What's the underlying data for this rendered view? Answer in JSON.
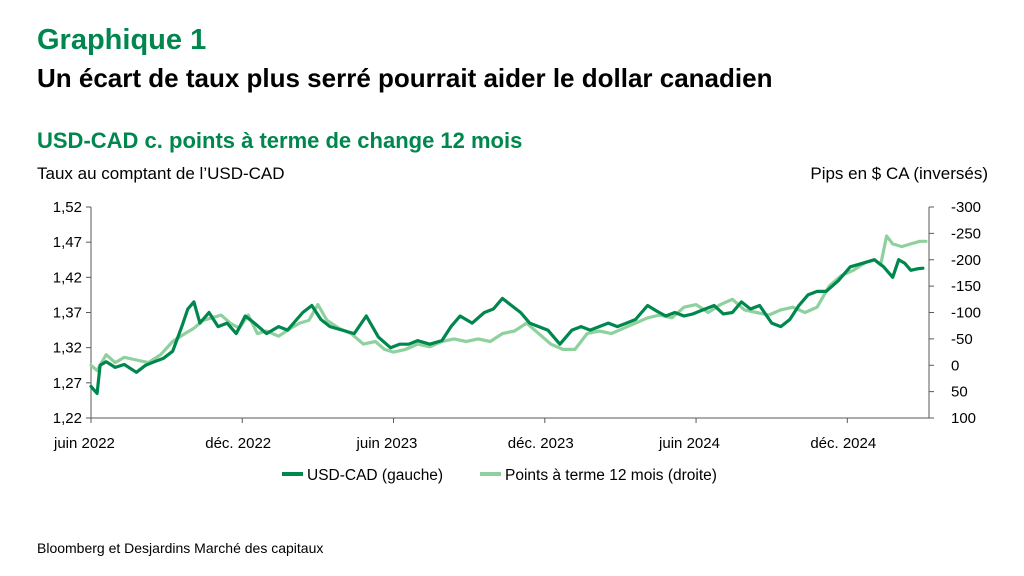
{
  "header": {
    "kicker": "Graphique 1",
    "title": "Un écart de taux plus serré pourrait aider le dollar canadien"
  },
  "source": "Bloomberg et Desjardins Marché des capitaux",
  "colors": {
    "brand": "#00874E",
    "series_dark": "#00874E",
    "series_light": "#8FD19E",
    "axis": "#595959"
  },
  "chart_data": {
    "type": "line",
    "title": "USD-CAD c. points à terme de change 12 mois",
    "ylabel": "Taux au comptant de l’USD-CAD",
    "y2label": "Pips en $ CA (inversés)",
    "x_range": [
      2022.45,
      2025.22
    ],
    "x_ticks": [
      {
        "label": "juin 2022",
        "value": 2022.45
      },
      {
        "label": "déc. 2022",
        "value": 2022.95
      },
      {
        "label": "juin 2023",
        "value": 2023.45
      },
      {
        "label": "déc. 2023",
        "value": 2023.95
      },
      {
        "label": "juin 2024",
        "value": 2024.45
      },
      {
        "label": "déc. 2024",
        "value": 2024.95
      }
    ],
    "ylim": [
      1.22,
      1.52
    ],
    "y_ticks": [
      "1,52",
      "1,47",
      "1,42",
      "1,37",
      "1,32",
      "1,27",
      "1,22"
    ],
    "y_tick_values": [
      1.52,
      1.47,
      1.42,
      1.37,
      1.32,
      1.27,
      1.22
    ],
    "y2lim_inverted": [
      100,
      -300
    ],
    "y2_ticks": [
      "-300",
      "-250",
      "-200",
      "-150",
      "-100",
      "-50",
      "0",
      "50",
      "100"
    ],
    "y2_tick_values": [
      -300,
      -250,
      -200,
      -150,
      -100,
      -50,
      0,
      50,
      100
    ],
    "legend": [
      {
        "label": "USD-CAD (gauche)",
        "series": "usdcad"
      },
      {
        "label": "Points à terme 12 mois (droite)",
        "series": "fwd"
      }
    ],
    "series": [
      {
        "name": "USD-CAD (gauche)",
        "axis": "left",
        "x": [
          2022.45,
          2022.47,
          2022.48,
          2022.5,
          2022.53,
          2022.56,
          2022.6,
          2022.63,
          2022.66,
          2022.69,
          2022.72,
          2022.75,
          2022.77,
          2022.79,
          2022.81,
          2022.84,
          2022.87,
          2022.9,
          2022.93,
          2022.96,
          2022.99,
          2023.03,
          2023.07,
          2023.1,
          2023.13,
          2023.15,
          2023.18,
          2023.21,
          2023.24,
          2023.28,
          2023.32,
          2023.36,
          2023.4,
          2023.44,
          2023.47,
          2023.5,
          2023.53,
          2023.57,
          2023.61,
          2023.64,
          2023.67,
          2023.71,
          2023.75,
          2023.78,
          2023.81,
          2023.84,
          2023.87,
          2023.9,
          2023.93,
          2023.96,
          2024.0,
          2024.04,
          2024.07,
          2024.1,
          2024.13,
          2024.16,
          2024.19,
          2024.22,
          2024.25,
          2024.29,
          2024.32,
          2024.35,
          2024.38,
          2024.41,
          2024.44,
          2024.48,
          2024.51,
          2024.54,
          2024.57,
          2024.6,
          2024.63,
          2024.66,
          2024.7,
          2024.73,
          2024.76,
          2024.79,
          2024.82,
          2024.85,
          2024.88,
          2024.92,
          2024.96,
          2025.0,
          2025.04,
          2025.07,
          2025.1,
          2025.12,
          2025.14,
          2025.16,
          2025.18,
          2025.2
        ],
        "values": [
          1.265,
          1.255,
          1.295,
          1.3,
          1.292,
          1.296,
          1.285,
          1.295,
          1.3,
          1.305,
          1.315,
          1.35,
          1.375,
          1.385,
          1.355,
          1.37,
          1.35,
          1.355,
          1.34,
          1.365,
          1.355,
          1.34,
          1.35,
          1.345,
          1.36,
          1.37,
          1.38,
          1.36,
          1.35,
          1.345,
          1.34,
          1.365,
          1.335,
          1.32,
          1.325,
          1.325,
          1.33,
          1.325,
          1.33,
          1.35,
          1.365,
          1.355,
          1.37,
          1.375,
          1.39,
          1.38,
          1.37,
          1.355,
          1.35,
          1.345,
          1.325,
          1.345,
          1.35,
          1.345,
          1.35,
          1.355,
          1.35,
          1.355,
          1.36,
          1.38,
          1.372,
          1.365,
          1.37,
          1.365,
          1.368,
          1.375,
          1.38,
          1.368,
          1.37,
          1.385,
          1.375,
          1.38,
          1.355,
          1.35,
          1.36,
          1.38,
          1.395,
          1.4,
          1.4,
          1.415,
          1.435,
          1.44,
          1.445,
          1.435,
          1.42,
          1.445,
          1.44,
          1.43,
          1.432,
          1.433
        ]
      },
      {
        "name": "Points à terme 12 mois (droite)",
        "axis": "right",
        "x": [
          2022.45,
          2022.47,
          2022.5,
          2022.53,
          2022.56,
          2022.6,
          2022.64,
          2022.68,
          2022.72,
          2022.76,
          2022.79,
          2022.82,
          2022.85,
          2022.88,
          2022.91,
          2022.94,
          2022.97,
          2023.0,
          2023.03,
          2023.07,
          2023.11,
          2023.14,
          2023.17,
          2023.2,
          2023.23,
          2023.27,
          2023.31,
          2023.35,
          2023.39,
          2023.42,
          2023.45,
          2023.49,
          2023.53,
          2023.57,
          2023.61,
          2023.65,
          2023.69,
          2023.73,
          2023.77,
          2023.81,
          2023.85,
          2023.89,
          2023.93,
          2023.97,
          2024.01,
          2024.05,
          2024.09,
          2024.13,
          2024.17,
          2024.21,
          2024.25,
          2024.29,
          2024.33,
          2024.37,
          2024.41,
          2024.45,
          2024.49,
          2024.53,
          2024.57,
          2024.61,
          2024.65,
          2024.69,
          2024.73,
          2024.77,
          2024.81,
          2024.85,
          2024.89,
          2024.93,
          2024.97,
          2025.01,
          2025.04,
          2025.06,
          2025.08,
          2025.1,
          2025.13,
          2025.16,
          2025.19,
          2025.21
        ],
        "values": [
          0,
          10,
          -20,
          -5,
          -15,
          -10,
          -5,
          -20,
          -45,
          -60,
          -70,
          -85,
          -90,
          -95,
          -80,
          -70,
          -95,
          -60,
          -65,
          -55,
          -70,
          -80,
          -85,
          -115,
          -85,
          -70,
          -60,
          -40,
          -45,
          -30,
          -25,
          -30,
          -40,
          -35,
          -45,
          -50,
          -45,
          -50,
          -45,
          -60,
          -65,
          -80,
          -60,
          -40,
          -30,
          -30,
          -60,
          -65,
          -60,
          -70,
          -80,
          -90,
          -95,
          -90,
          -110,
          -115,
          -100,
          -115,
          -125,
          -105,
          -100,
          -95,
          -105,
          -110,
          -100,
          -110,
          -150,
          -170,
          -180,
          -195,
          -200,
          -190,
          -245,
          -230,
          -225,
          -230,
          -235,
          -235
        ]
      }
    ]
  }
}
